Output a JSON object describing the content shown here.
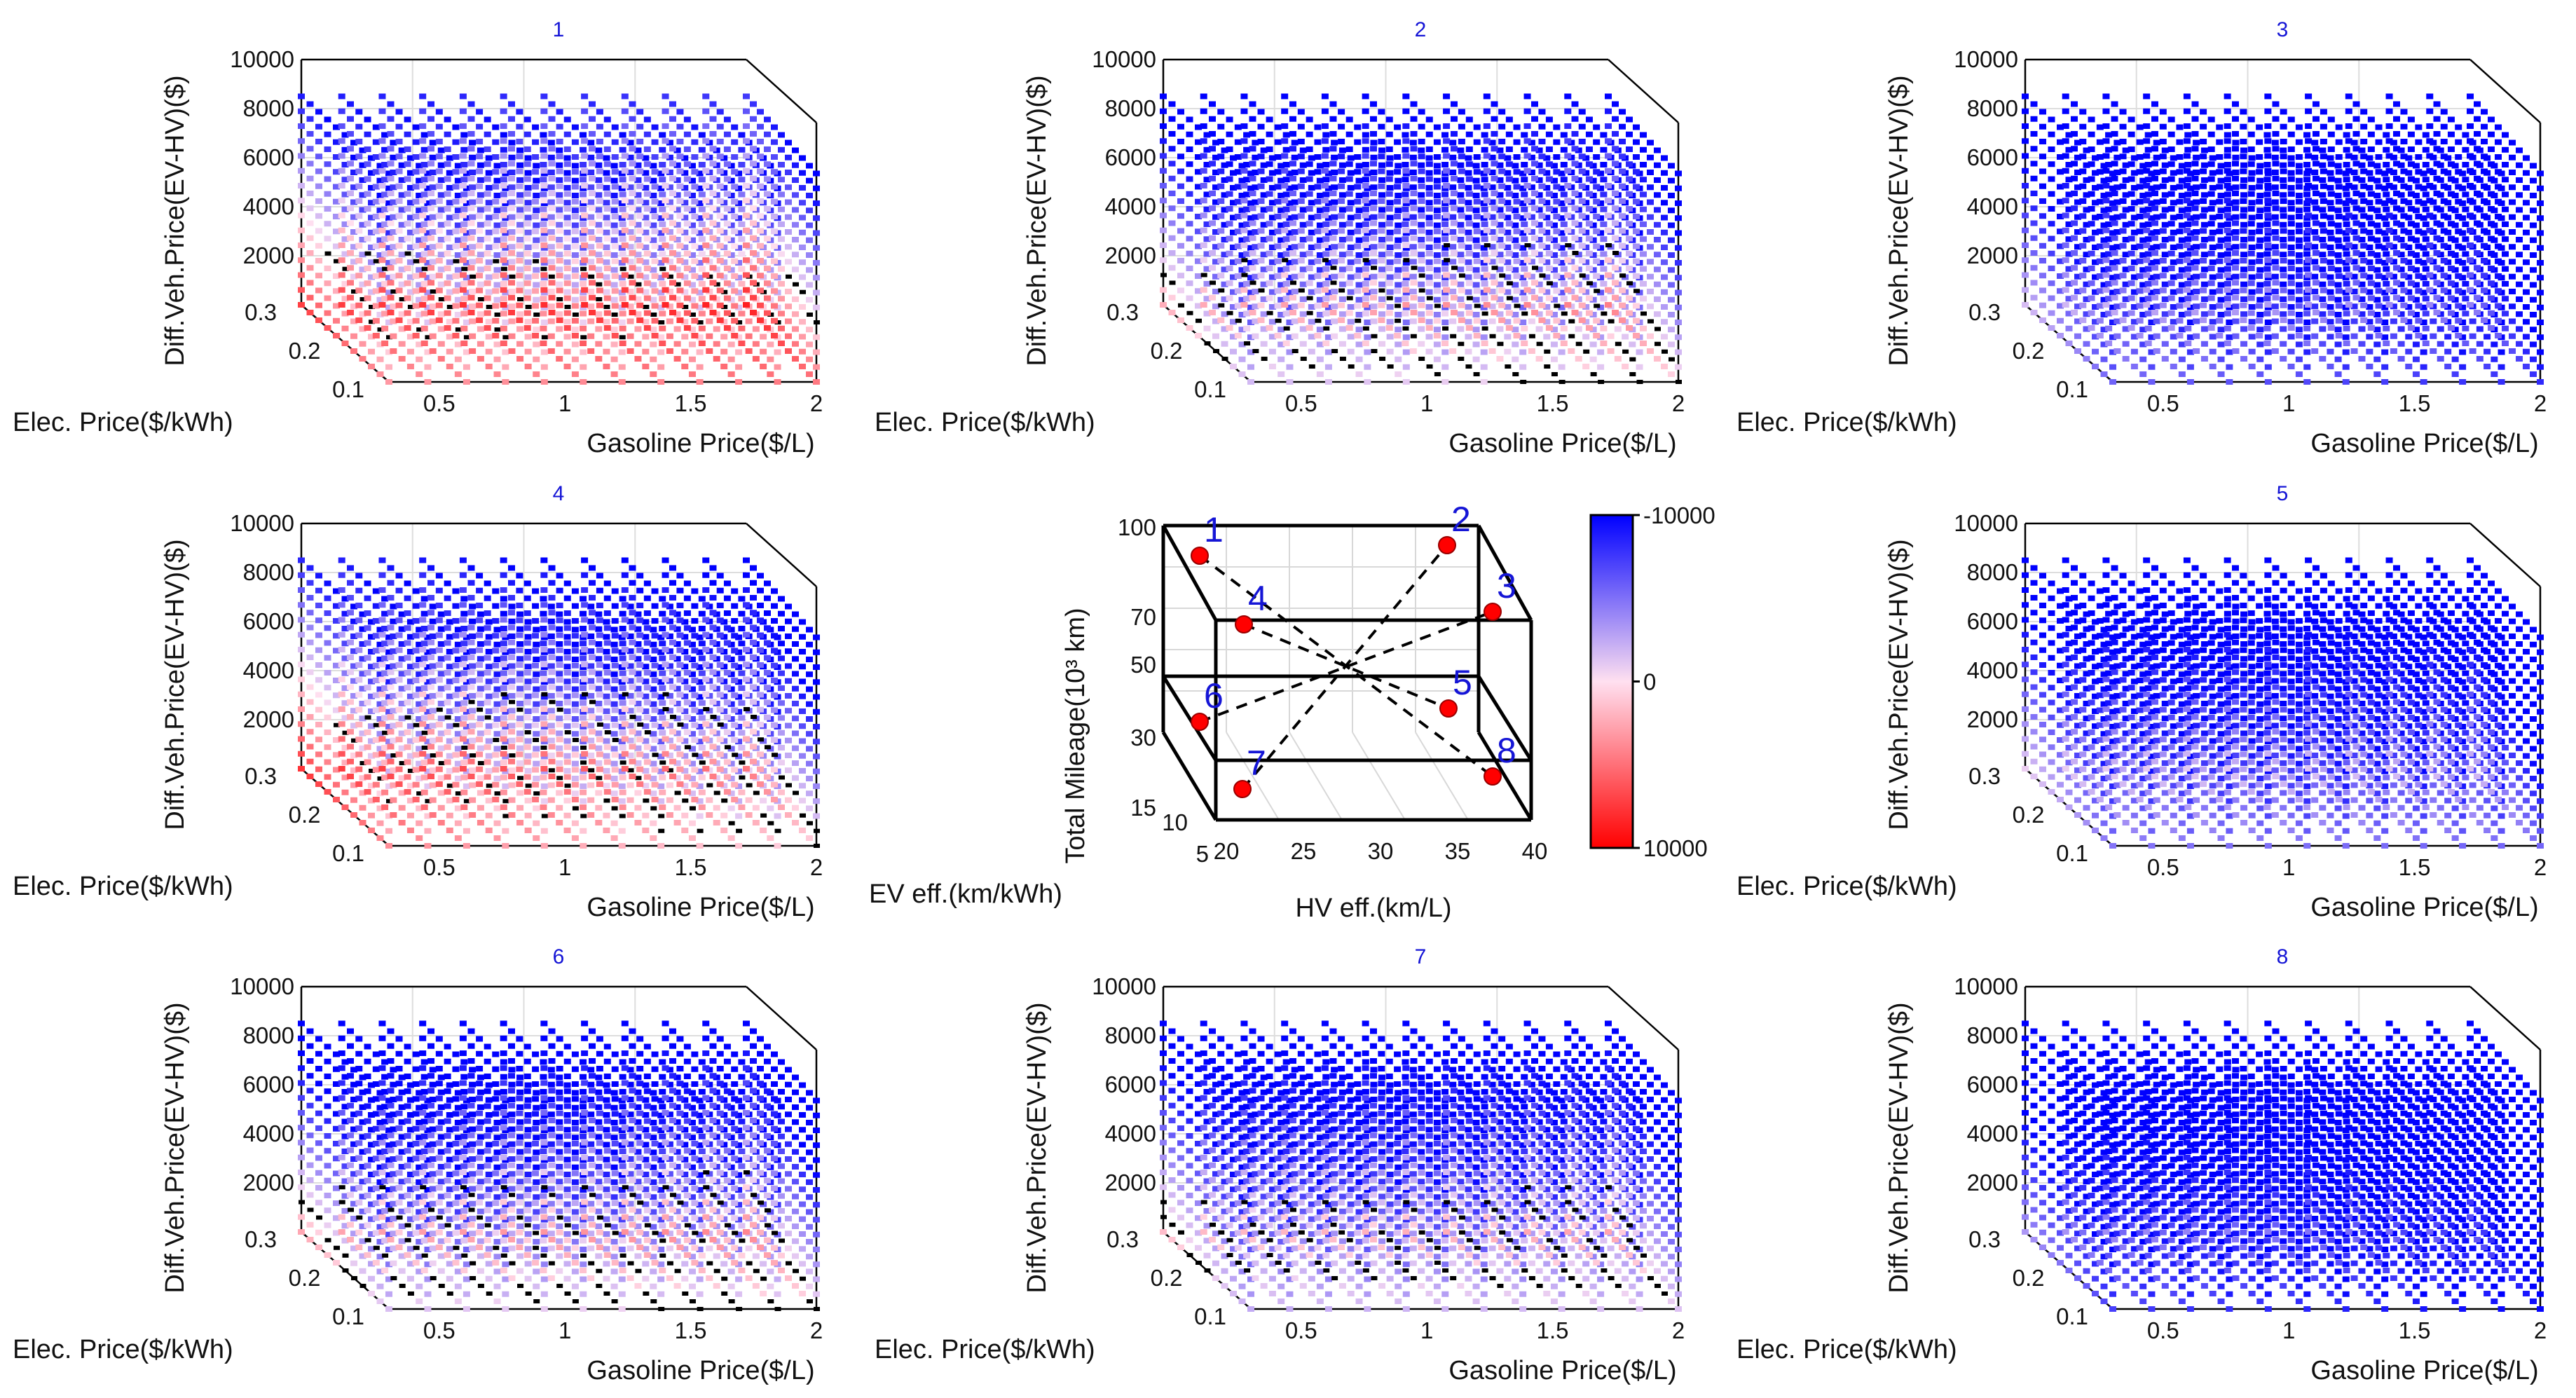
{
  "chart_data": {
    "type": "scatter3d-grid",
    "panels": [
      {
        "id": "1",
        "title": "1",
        "surface": [
          0.45,
          0.35
        ],
        "scale": 1.0
      },
      {
        "id": "2",
        "title": "2",
        "surface": [
          0.14,
          0.08
        ],
        "scale": 0.9
      },
      {
        "id": "3",
        "title": "3",
        "surface": [
          -0.1,
          -0.45
        ],
        "scale": 0.78
      },
      {
        "id": "4",
        "title": "4",
        "surface": [
          0.48,
          0.1
        ],
        "scale": 1.0
      },
      {
        "id": "5",
        "title": "5",
        "surface": [
          -0.05,
          -0.28
        ],
        "scale": 0.8
      },
      {
        "id": "6",
        "title": "6",
        "surface": [
          0.16,
          0.06
        ],
        "scale": 0.95
      },
      {
        "id": "7",
        "title": "7",
        "surface": [
          0.1,
          -0.02
        ],
        "scale": 0.88
      },
      {
        "id": "8",
        "title": "8",
        "surface": [
          -0.2,
          -0.55
        ],
        "scale": 0.78
      }
    ],
    "axes": {
      "z_label": "Diff.Veh.Price(EV-HV)($)",
      "x_label": "Gasoline Price($/L)",
      "y_label": "Elec. Price($/kWh)",
      "z_ticks": [
        "2000",
        "4000",
        "6000",
        "8000",
        "10000"
      ],
      "z_tick_values": [
        2000,
        4000,
        6000,
        8000,
        10000
      ],
      "z_range": [
        0,
        10000
      ],
      "x_ticks": [
        "0.5",
        "1",
        "1.5",
        "2"
      ],
      "x_tick_values": [
        0.5,
        1,
        1.5,
        2
      ],
      "x_range": [
        0.3,
        2
      ],
      "y_ticks": [
        "0.1",
        "0.2",
        "0.3"
      ],
      "y_tick_values": [
        0.1,
        0.2,
        0.3
      ],
      "y_range": [
        0.1,
        0.3
      ]
    },
    "center": {
      "z_label": "Total Mileage(10³ km)",
      "x_label": "HV eff.(km/L)",
      "y_label": "EV eff.(km/kWh)",
      "z_ticks": [
        "15",
        "30",
        "50",
        "70",
        "100"
      ],
      "x_ticks": [
        "20",
        "25",
        "30",
        "35",
        "40"
      ],
      "y_ticks": [
        "5",
        "10"
      ],
      "points": [
        "1",
        "2",
        "3",
        "4",
        "5",
        "6",
        "7",
        "8"
      ]
    },
    "colorbar": {
      "ticks": [
        "-10000",
        "0",
        "10000"
      ],
      "tick_values": [
        -10000,
        0,
        10000
      ],
      "colors": {
        "low": "#0000ff",
        "mid": "#ffe0f0",
        "high": "#ff0000"
      }
    },
    "colors": {
      "point": "#ff0000",
      "title": "#1515d6"
    }
  }
}
